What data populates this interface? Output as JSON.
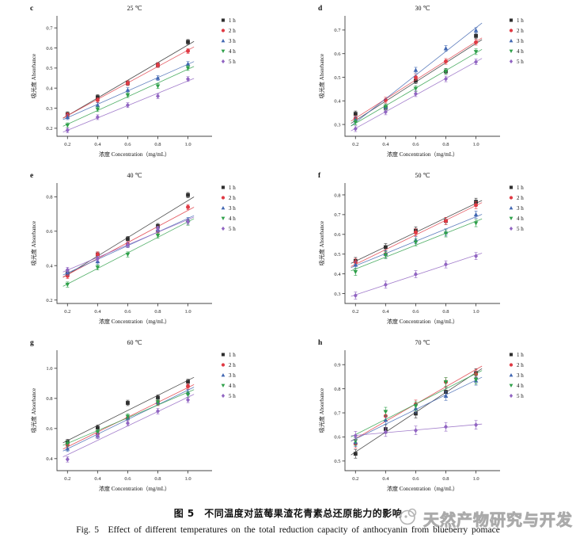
{
  "figure": {
    "caption_zh": "图 5　不同温度对蓝莓果渣花青素总还原能力的影响",
    "caption_en": "Fig. 5　Effect of different temperatures on the total reduction capacity of anthocyanin from blueberry pomace",
    "watermark": "天然产物研究与开发"
  },
  "colors": {
    "axis": "#444444",
    "text": "#111111",
    "watermark_gray": "#aaaaaa"
  },
  "chart_data": {
    "type": "scatter",
    "x": [
      0.2,
      0.4,
      0.6,
      0.8,
      1.0
    ],
    "xlabel": "浓度 Concentration（mg/mL）",
    "ylabel": "吸光度 Absorbance",
    "legend_position": "right",
    "grid": false,
    "series_style": [
      {
        "label": "1 h",
        "marker": "square",
        "color": "#2f2f2f"
      },
      {
        "label": "2 h",
        "marker": "circle",
        "color": "#e03a44"
      },
      {
        "label": "3 h",
        "marker": "triangle-up",
        "color": "#4167b2"
      },
      {
        "label": "4 h",
        "marker": "triangle-down",
        "color": "#2fa04a"
      },
      {
        "label": "5 h",
        "marker": "diamond",
        "color": "#9165c2"
      }
    ],
    "panels": [
      {
        "letter": "c",
        "title": "25 ℃",
        "ylim": [
          0.16,
          0.76
        ],
        "yticks": [
          0.2,
          0.3,
          0.4,
          0.5,
          0.6,
          0.7
        ],
        "error_bar": 0.012,
        "values": [
          [
            0.27,
            0.355,
            0.425,
            0.515,
            0.63
          ],
          [
            0.265,
            0.34,
            0.425,
            0.515,
            0.585
          ],
          [
            0.255,
            0.315,
            0.39,
            0.45,
            0.52
          ],
          [
            0.215,
            0.295,
            0.365,
            0.41,
            0.5
          ],
          [
            0.19,
            0.255,
            0.315,
            0.36,
            0.445
          ]
        ]
      },
      {
        "letter": "d",
        "title": "30 ℃",
        "ylim": [
          0.25,
          0.76
        ],
        "yticks": [
          0.3,
          0.4,
          0.5,
          0.6,
          0.7
        ],
        "error_bar": 0.012,
        "values": [
          [
            0.345,
            0.37,
            0.485,
            0.525,
            0.675
          ],
          [
            0.325,
            0.403,
            0.5,
            0.567,
            0.648
          ],
          [
            0.32,
            0.375,
            0.53,
            0.622,
            0.698
          ],
          [
            0.31,
            0.375,
            0.452,
            0.525,
            0.608
          ],
          [
            0.282,
            0.353,
            0.43,
            0.493,
            0.565
          ]
        ]
      },
      {
        "letter": "e",
        "title": "40 ℃",
        "ylim": [
          0.18,
          0.88
        ],
        "yticks": [
          0.2,
          0.4,
          0.6,
          0.8
        ],
        "error_bar": 0.015,
        "values": [
          [
            0.355,
            0.465,
            0.555,
            0.63,
            0.81
          ],
          [
            0.34,
            0.465,
            0.525,
            0.6,
            0.74
          ],
          [
            0.36,
            0.425,
            0.52,
            0.61,
            0.665
          ],
          [
            0.29,
            0.39,
            0.465,
            0.575,
            0.65
          ],
          [
            0.375,
            0.44,
            0.52,
            0.615,
            0.655
          ]
        ]
      },
      {
        "letter": "f",
        "title": "50 ℃",
        "ylim": [
          0.25,
          0.86
        ],
        "yticks": [
          0.3,
          0.4,
          0.5,
          0.6,
          0.7,
          0.8
        ],
        "error_bar": 0.018,
        "values": [
          [
            0.465,
            0.535,
            0.62,
            0.668,
            0.765
          ],
          [
            0.46,
            0.5,
            0.61,
            0.668,
            0.748
          ],
          [
            0.445,
            0.5,
            0.57,
            0.61,
            0.7
          ],
          [
            0.41,
            0.495,
            0.56,
            0.605,
            0.657
          ],
          [
            0.29,
            0.345,
            0.398,
            0.448,
            0.49
          ]
        ]
      },
      {
        "letter": "g",
        "title": "60 ℃",
        "ylim": [
          0.32,
          1.12
        ],
        "yticks": [
          0.4,
          0.6,
          0.8,
          1.0
        ],
        "error_bar": 0.018,
        "values": [
          [
            0.51,
            0.605,
            0.77,
            0.805,
            0.91
          ],
          [
            0.49,
            0.565,
            0.67,
            0.77,
            0.88
          ],
          [
            0.465,
            0.55,
            0.67,
            0.775,
            0.84
          ],
          [
            0.5,
            0.575,
            0.68,
            0.775,
            0.825
          ],
          [
            0.395,
            0.55,
            0.635,
            0.715,
            0.79
          ]
        ]
      },
      {
        "letter": "h",
        "title": "70 ℃",
        "ylim": [
          0.46,
          0.96
        ],
        "yticks": [
          0.5,
          0.6,
          0.7,
          0.8,
          0.9
        ],
        "error_bar": 0.018,
        "values": [
          [
            0.53,
            0.633,
            0.697,
            0.787,
            0.865
          ],
          [
            0.572,
            0.687,
            0.735,
            0.828,
            0.86
          ],
          [
            0.578,
            0.67,
            0.718,
            0.77,
            0.833
          ],
          [
            0.583,
            0.705,
            0.728,
            0.828,
            0.838
          ],
          [
            0.605,
            0.62,
            0.627,
            0.642,
            0.65
          ]
        ]
      }
    ]
  }
}
